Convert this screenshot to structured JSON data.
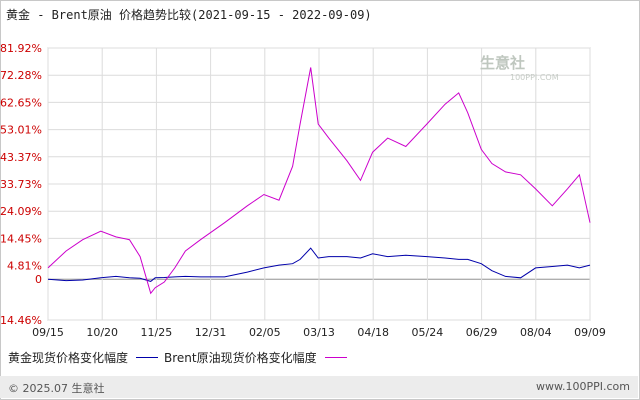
{
  "title": "黄金 - Brent原油 价格趋势比较(2021-09-15 - 2022-09-09)",
  "legend": [
    "黄金现货价格变化幅度",
    "Brent原油现货价格变化幅度"
  ],
  "footer": {
    "left": "© 2025.07 生意社",
    "right": "www.100PPI.com"
  },
  "watermark": {
    "name": "生意社",
    "site": "100PPI.COM"
  },
  "colors": {
    "gold": "#0000aa",
    "brent": "#cc00cc",
    "ytick": "#cc0000",
    "grid": "#dcdcdc"
  },
  "chart_data": {
    "type": "line",
    "title": "黄金 - Brent原油 价格趋势比较(2021-09-15 - 2022-09-09)",
    "xlabel": "",
    "ylabel": "",
    "x_ticks": [
      "09/15",
      "10/20",
      "11/25",
      "12/31",
      "02/05",
      "03/13",
      "04/18",
      "05/24",
      "06/29",
      "08/04",
      "09/09"
    ],
    "y_ticks": [
      "81.92%",
      "72.28%",
      "62.65%",
      "53.01%",
      "43.37%",
      "33.73%",
      "24.09%",
      "14.45%",
      "4.81%",
      "0",
      "-14.46%"
    ],
    "y_tick_values": [
      81.92,
      72.28,
      62.65,
      53.01,
      43.37,
      33.73,
      24.09,
      14.45,
      4.81,
      0,
      -14.46
    ],
    "ylim": [
      -14.46,
      81.92
    ],
    "grid": true,
    "legend_position": "bottom",
    "x": [
      "2021-09-15",
      "2021-09-27",
      "2021-10-08",
      "2021-10-20",
      "2021-10-30",
      "2021-11-08",
      "2021-11-15",
      "2021-11-22",
      "2021-11-25",
      "2021-12-01",
      "2021-12-08",
      "2021-12-15",
      "2021-12-25",
      "2022-01-10",
      "2022-01-25",
      "2022-02-05",
      "2022-02-15",
      "2022-02-24",
      "2022-03-01",
      "2022-03-08",
      "2022-03-13",
      "2022-03-20",
      "2022-04-01",
      "2022-04-10",
      "2022-04-18",
      "2022-04-28",
      "2022-05-10",
      "2022-05-24",
      "2022-06-05",
      "2022-06-14",
      "2022-06-20",
      "2022-06-29",
      "2022-07-06",
      "2022-07-15",
      "2022-07-25",
      "2022-08-04",
      "2022-08-15",
      "2022-08-25",
      "2022-09-02",
      "2022-09-09"
    ],
    "series": [
      {
        "name": "黄金现货价格变化幅度",
        "values": [
          0.0,
          -0.5,
          -0.3,
          0.5,
          1.0,
          0.5,
          0.3,
          -0.8,
          0.5,
          0.6,
          0.8,
          1.0,
          0.8,
          0.8,
          2.5,
          4.0,
          5.0,
          5.5,
          7.0,
          11.0,
          7.5,
          8.0,
          8.0,
          7.5,
          9.0,
          8.0,
          8.5,
          8.0,
          7.5,
          7.0,
          7.0,
          5.5,
          3.0,
          1.0,
          0.5,
          4.0,
          4.5,
          5.0,
          4.0,
          5.0
        ]
      },
      {
        "name": "Brent原油现货价格变化幅度",
        "values": [
          4.0,
          10.0,
          14.0,
          17.0,
          15.0,
          14.0,
          8.0,
          -5.0,
          -3.0,
          -1.0,
          4.0,
          10.0,
          14.0,
          20.0,
          26.0,
          30.0,
          28.0,
          40.0,
          55.0,
          75.0,
          55.0,
          50.0,
          42.0,
          35.0,
          45.0,
          50.0,
          47.0,
          55.0,
          62.0,
          66.0,
          59.0,
          46.0,
          41.0,
          38.0,
          37.0,
          32.0,
          26.0,
          32.0,
          37.0,
          20.0
        ]
      }
    ]
  }
}
